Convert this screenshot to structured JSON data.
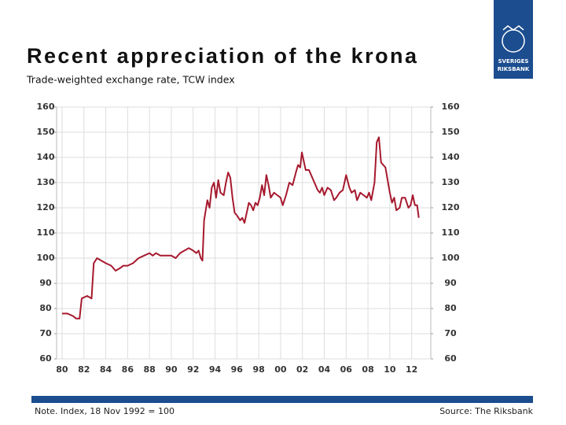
{
  "chart_data": {
    "type": "line",
    "title": "Recent appreciation of the krona",
    "subtitle": "Trade-weighted exchange rate, TCW index",
    "x": [
      1980.0,
      1980.5,
      1981.0,
      1981.3,
      1981.6,
      1981.8,
      1982.3,
      1982.7,
      1982.9,
      1983.2,
      1983.6,
      1984.0,
      1984.5,
      1984.9,
      1985.3,
      1985.6,
      1986.0,
      1986.5,
      1987.0,
      1987.5,
      1988.0,
      1988.3,
      1988.6,
      1989.0,
      1989.5,
      1990.0,
      1990.4,
      1990.8,
      1991.2,
      1991.6,
      1992.0,
      1992.3,
      1992.5,
      1992.7,
      1992.85,
      1993.0,
      1993.3,
      1993.5,
      1993.7,
      1993.9,
      1994.1,
      1994.3,
      1994.5,
      1994.8,
      1995.0,
      1995.2,
      1995.4,
      1995.6,
      1995.8,
      1996.0,
      1996.3,
      1996.5,
      1996.7,
      1996.9,
      1997.1,
      1997.3,
      1997.5,
      1997.7,
      1997.9,
      1998.1,
      1998.3,
      1998.5,
      1998.7,
      1998.9,
      1999.1,
      1999.4,
      1999.7,
      2000.0,
      2000.2,
      2000.5,
      2000.8,
      2001.1,
      2001.4,
      2001.6,
      2001.8,
      2001.95,
      2002.1,
      2002.3,
      2002.6,
      2002.9,
      2003.1,
      2003.4,
      2003.6,
      2003.8,
      2004.0,
      2004.3,
      2004.6,
      2004.9,
      2005.1,
      2005.4,
      2005.7,
      2006.0,
      2006.3,
      2006.5,
      2006.8,
      2007.0,
      2007.3,
      2007.6,
      2007.9,
      2008.1,
      2008.3,
      2008.6,
      2008.8,
      2009.0,
      2009.2,
      2009.4,
      2009.6,
      2009.8,
      2010.0,
      2010.2,
      2010.4,
      2010.6,
      2010.9,
      2011.1,
      2011.4,
      2011.7,
      2011.9,
      2012.1,
      2012.3,
      2012.5,
      2012.65
    ],
    "series": [
      {
        "name": "TCW index",
        "color": "#a6192e",
        "values": [
          78,
          78,
          77,
          76,
          76,
          84,
          85,
          84,
          98,
          100,
          99,
          98,
          97,
          95,
          96,
          97,
          97,
          98,
          100,
          101,
          102,
          101,
          102,
          101,
          101,
          101,
          100,
          102,
          103,
          104,
          103,
          102,
          103,
          100,
          99,
          115,
          123,
          120,
          128,
          130,
          124,
          131,
          126,
          125,
          130,
          134,
          132,
          124,
          118,
          117,
          115,
          116,
          114,
          118,
          122,
          121,
          119,
          122,
          121,
          124,
          129,
          125,
          133,
          129,
          124,
          126,
          125,
          124,
          121,
          125,
          130,
          129,
          134,
          137,
          136,
          142,
          139,
          135,
          135,
          132,
          130,
          127,
          126,
          128,
          125,
          128,
          127,
          123,
          124,
          126,
          127,
          133,
          128,
          126,
          127,
          123,
          126,
          125,
          124,
          126,
          123,
          130,
          146,
          148,
          138,
          137,
          136,
          131,
          126,
          122,
          124,
          119,
          120,
          124,
          124,
          120,
          121,
          125,
          121,
          121,
          116
        ]
      }
    ],
    "xlim": [
      1979.5,
      2013.75
    ],
    "xticks": [
      {
        "value": 1980,
        "label": "80"
      },
      {
        "value": 1982,
        "label": "82"
      },
      {
        "value": 1984,
        "label": "84"
      },
      {
        "value": 1986,
        "label": "86"
      },
      {
        "value": 1988,
        "label": "88"
      },
      {
        "value": 1990,
        "label": "90"
      },
      {
        "value": 1992,
        "label": "92"
      },
      {
        "value": 1994,
        "label": "94"
      },
      {
        "value": 1996,
        "label": "96"
      },
      {
        "value": 1998,
        "label": "98"
      },
      {
        "value": 2000,
        "label": "00"
      },
      {
        "value": 2002,
        "label": "02"
      },
      {
        "value": 2004,
        "label": "04"
      },
      {
        "value": 2006,
        "label": "06"
      },
      {
        "value": 2008,
        "label": "08"
      },
      {
        "value": 2010,
        "label": "10"
      },
      {
        "value": 2012,
        "label": "12"
      }
    ],
    "ylim": [
      60,
      160
    ],
    "yticks": [
      60,
      70,
      80,
      90,
      100,
      110,
      120,
      130,
      140,
      150,
      160
    ],
    "grid": true
  },
  "note": "Note. Index, 18 Nov 1992 = 100",
  "source": "Source: The Riksbank",
  "logo": [
    "SVERIGES",
    "RIKSBANK"
  ]
}
